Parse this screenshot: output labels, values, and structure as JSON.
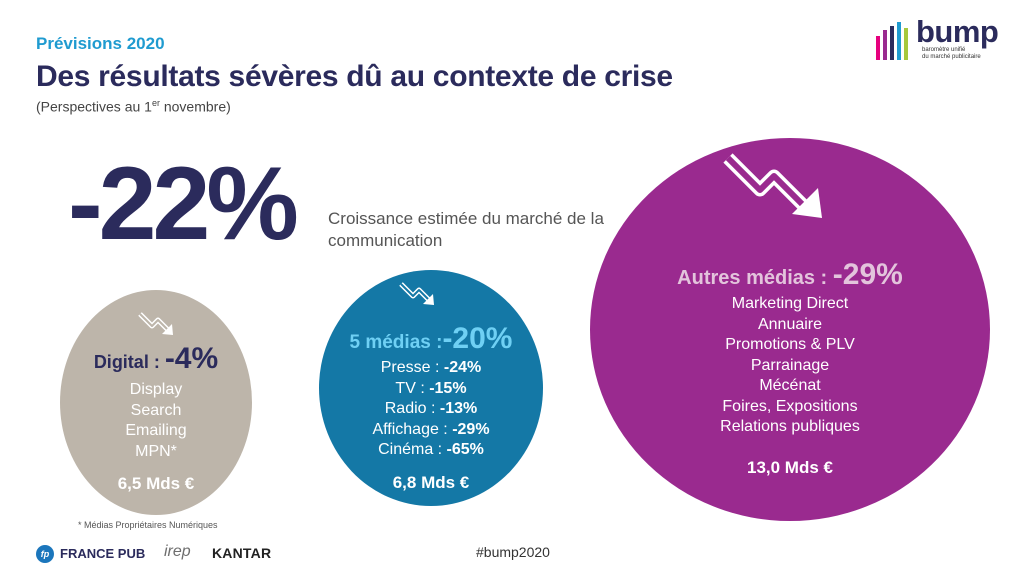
{
  "header": {
    "kicker": "Prévisions 2020",
    "title": "Des résultats sévères dû au contexte de crise",
    "subtitle_before": "(Perspectives au 1",
    "subtitle_sup": "er",
    "subtitle_after": " novembre)"
  },
  "headline": {
    "value": "-22%",
    "description": "Croissance estimée du marché de la communication"
  },
  "circles": {
    "digital": {
      "label": "Digital : ",
      "pct": "-4%",
      "items": [
        "Display",
        "Search",
        "Emailing",
        "MPN*"
      ],
      "amount": "6,5 Mds €"
    },
    "five_media": {
      "label": "5 médias :",
      "pct": "-20%",
      "items": [
        {
          "name": "Presse : ",
          "value": "-24%"
        },
        {
          "name": "TV : ",
          "value": "-15%"
        },
        {
          "name": "Radio : ",
          "value": "-13%"
        },
        {
          "name": "Affichage : ",
          "value": "-29%"
        },
        {
          "name": "Cinéma : ",
          "value": "-65%"
        }
      ],
      "amount": "6,8 Mds €"
    },
    "other_media": {
      "label": "Autres médias : ",
      "pct": "-29%",
      "items": [
        "Marketing Direct",
        "Annuaire",
        "Promotions & PLV",
        "Parrainage",
        "Mécénat",
        "Foires, Expositions",
        "Relations publiques"
      ],
      "amount": "13,0 Mds €"
    }
  },
  "footnote": "* Médias Propriétaires Numériques",
  "hashtag": "#bump2020",
  "logo": {
    "word": "bump",
    "tagline_line1": "baromètre unifié",
    "tagline_line2": "du marché publicitaire"
  },
  "partners": {
    "francepub_icon": "fp",
    "francepub": "FRANCE PUB",
    "irep": "irep",
    "kantar": "KANTAR"
  },
  "colors": {
    "navy": "#2b2b5c",
    "blue": "#1f9bd0",
    "digital_circle": "#bdb5aa",
    "five_media_circle": "#1478a6",
    "other_media_circle": "#9a2a8f"
  },
  "icons": [
    "down-trend-arrow-icon",
    "logo-bars-icon"
  ]
}
